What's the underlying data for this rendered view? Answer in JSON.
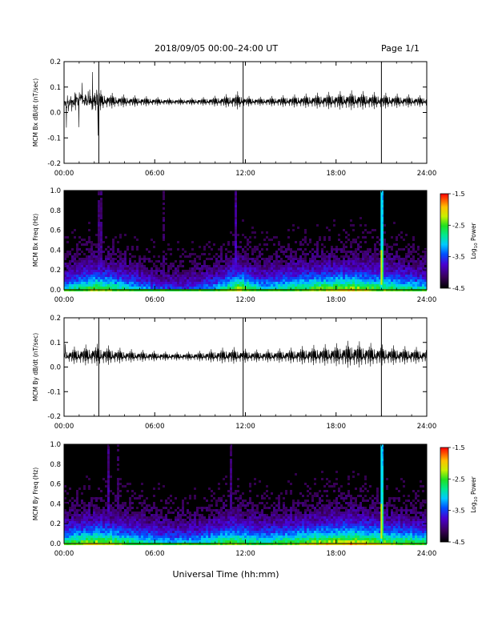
{
  "header": {
    "title": "2018/09/05  00:00–24:00 UT",
    "page": "Page 1/1"
  },
  "footer": {
    "xlabel": "Universal Time (hh:mm)"
  },
  "colorbar": {
    "label_prefix": "Log",
    "label_sub": "10",
    "label_suffix": " Power",
    "ticks": [
      "-1.5",
      "-2.5",
      "-3.5",
      "-4.5"
    ],
    "min": -4.5,
    "max": -1.5
  },
  "colors": {
    "trace": "#000000",
    "spectrogram_background": "#000000",
    "spike_line": "#00e5ff"
  },
  "chart_data": [
    {
      "type": "line",
      "ylabel": "MCM Bx dB/dt (nT/sec)",
      "xlim": [
        0,
        24
      ],
      "ylim": [
        -0.2,
        0.2
      ],
      "x_ticks": [
        "00:00",
        "06:00",
        "12:00",
        "18:00",
        "24:00"
      ],
      "y_ticks": [
        "0.2",
        "0.1",
        "0.0",
        "-0.1",
        "-0.2"
      ],
      "y_tick_values": [
        0.2,
        0.1,
        0.0,
        -0.1,
        -0.2
      ],
      "baseline": 0.04,
      "envelope": [
        [
          0,
          0.035
        ],
        [
          0.5,
          0.045
        ],
        [
          1,
          0.05
        ],
        [
          1.5,
          0.055
        ],
        [
          2,
          0.06
        ],
        [
          2.5,
          0.055
        ],
        [
          3,
          0.045
        ],
        [
          4,
          0.035
        ],
        [
          5,
          0.03
        ],
        [
          6,
          0.025
        ],
        [
          7,
          0.02
        ],
        [
          8,
          0.02
        ],
        [
          9,
          0.022
        ],
        [
          10,
          0.03
        ],
        [
          11,
          0.04
        ],
        [
          11.5,
          0.05
        ],
        [
          12,
          0.03
        ],
        [
          13,
          0.025
        ],
        [
          14,
          0.03
        ],
        [
          15,
          0.035
        ],
        [
          16,
          0.04
        ],
        [
          17,
          0.045
        ],
        [
          18,
          0.05
        ],
        [
          19,
          0.055
        ],
        [
          20,
          0.05
        ],
        [
          21,
          0.045
        ],
        [
          22,
          0.04
        ],
        [
          23,
          0.035
        ],
        [
          24,
          0.03
        ]
      ],
      "spikes": [
        {
          "x": 2.3,
          "y_min": -0.2,
          "y_max": 0.2
        },
        {
          "x": 11.85,
          "y_min": -0.2,
          "y_max": 0.2
        },
        {
          "x": 21.0,
          "y_min": -0.2,
          "y_max": 0.2
        }
      ]
    },
    {
      "type": "heatmap",
      "ylabel": "MCM Bx Freq (Hz)",
      "xlim": [
        0,
        24
      ],
      "ylim": [
        0,
        1.0
      ],
      "x_ticks": [
        "00:00",
        "06:00",
        "12:00",
        "18:00",
        "24:00"
      ],
      "y_ticks": [
        "1.0",
        "0.8",
        "0.6",
        "0.4",
        "0.2",
        "0.0"
      ],
      "y_tick_values": [
        1.0,
        0.8,
        0.6,
        0.4,
        0.2,
        0.0
      ],
      "log10_power_range": [
        -4.5,
        -1.5
      ],
      "activity_profile": [
        [
          0,
          0.5
        ],
        [
          2,
          0.7
        ],
        [
          4,
          0.55
        ],
        [
          6,
          0.35
        ],
        [
          8,
          0.3
        ],
        [
          10,
          0.45
        ],
        [
          11.5,
          0.75
        ],
        [
          13,
          0.5
        ],
        [
          15,
          0.6
        ],
        [
          17,
          0.7
        ],
        [
          19,
          0.75
        ],
        [
          21,
          0.65
        ],
        [
          24,
          0.5
        ]
      ],
      "vertical_features": [
        {
          "x": 2.3,
          "log10_power": -3.8
        },
        {
          "x": 6.5,
          "log10_power": -3.9
        },
        {
          "x": 11.3,
          "log10_power": -3.6
        },
        {
          "x": 21.0,
          "log10_power": -2.5
        }
      ]
    },
    {
      "type": "line",
      "ylabel": "MCM By dB/dt (nT/sec)",
      "xlim": [
        0,
        24
      ],
      "ylim": [
        -0.2,
        0.2
      ],
      "x_ticks": [
        "00:00",
        "06:00",
        "12:00",
        "18:00",
        "24:00"
      ],
      "y_ticks": [
        "0.2",
        "0.1",
        "0.0",
        "-0.1",
        "-0.2"
      ],
      "y_tick_values": [
        0.2,
        0.1,
        0.0,
        -0.1,
        -0.2
      ],
      "baseline": 0.04,
      "envelope": [
        [
          0,
          0.04
        ],
        [
          1,
          0.055
        ],
        [
          2,
          0.065
        ],
        [
          3,
          0.055
        ],
        [
          4,
          0.04
        ],
        [
          5,
          0.035
        ],
        [
          6,
          0.03
        ],
        [
          7,
          0.025
        ],
        [
          8,
          0.025
        ],
        [
          9,
          0.03
        ],
        [
          10,
          0.04
        ],
        [
          11,
          0.05
        ],
        [
          12,
          0.04
        ],
        [
          13,
          0.035
        ],
        [
          14,
          0.04
        ],
        [
          15,
          0.045
        ],
        [
          16,
          0.055
        ],
        [
          17,
          0.06
        ],
        [
          18,
          0.065
        ],
        [
          19,
          0.08
        ],
        [
          20,
          0.07
        ],
        [
          21,
          0.06
        ],
        [
          22,
          0.055
        ],
        [
          23,
          0.05
        ],
        [
          24,
          0.045
        ]
      ],
      "spikes": [
        {
          "x": 2.3,
          "y_min": -0.2,
          "y_max": 0.2
        },
        {
          "x": 11.85,
          "y_min": -0.2,
          "y_max": 0.2
        },
        {
          "x": 21.0,
          "y_min": -0.2,
          "y_max": 0.2
        }
      ]
    },
    {
      "type": "heatmap",
      "ylabel": "MCM By Freq (Hz)",
      "xlim": [
        0,
        24
      ],
      "ylim": [
        0,
        1.0
      ],
      "x_ticks": [
        "00:00",
        "06:00",
        "12:00",
        "18:00",
        "24:00"
      ],
      "y_ticks": [
        "1.0",
        "0.8",
        "0.6",
        "0.4",
        "0.2",
        "0.0"
      ],
      "y_tick_values": [
        1.0,
        0.8,
        0.6,
        0.4,
        0.2,
        0.0
      ],
      "log10_power_range": [
        -4.5,
        -1.5
      ],
      "activity_profile": [
        [
          0,
          0.6
        ],
        [
          2,
          0.75
        ],
        [
          3,
          0.7
        ],
        [
          5,
          0.55
        ],
        [
          7,
          0.45
        ],
        [
          9,
          0.5
        ],
        [
          11,
          0.7
        ],
        [
          13,
          0.55
        ],
        [
          15,
          0.65
        ],
        [
          17,
          0.75
        ],
        [
          19,
          0.8
        ],
        [
          21,
          0.7
        ],
        [
          24,
          0.6
        ]
      ],
      "vertical_features": [
        {
          "x": 2.9,
          "log10_power": -3.7
        },
        {
          "x": 3.5,
          "log10_power": -3.9
        },
        {
          "x": 11.0,
          "log10_power": -3.8
        },
        {
          "x": 21.0,
          "log10_power": -2.5
        }
      ]
    }
  ]
}
